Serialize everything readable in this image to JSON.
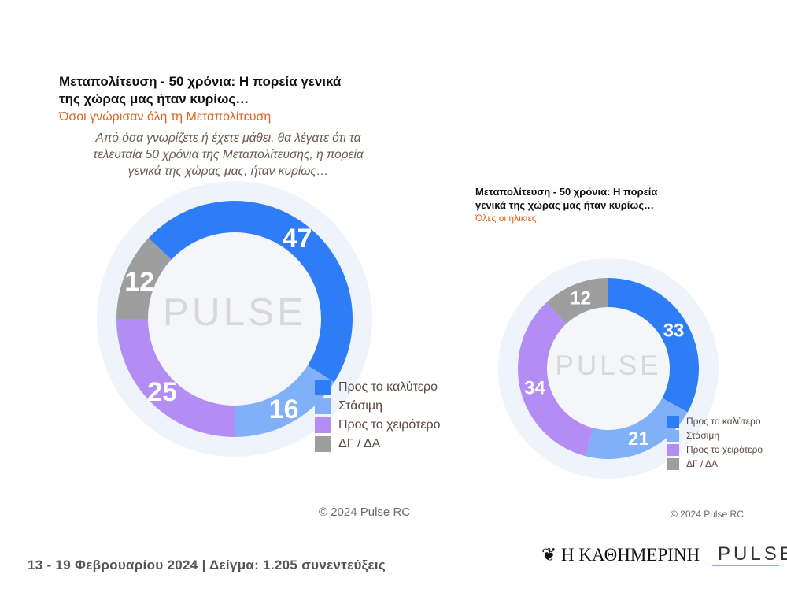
{
  "chart_data": [
    {
      "type": "pie",
      "title": "Μεταπολίτευση - 50 χρόνια: Η πορεία γενικά της χώρας μας ήταν κυρίως…",
      "subtitle": "Όσοι γνώρισαν όλη τη Μεταπολίτευση",
      "question": "Από όσα γνωρίζετε ή έχετε μάθει, θα λέγατε ότι τα τελευταία 50 χρόνια της Μεταπολίτευσης, η πορεία γενικά της χώρας μας, ήταν κυρίως…",
      "categories": [
        "Προς το καλύτερο",
        "Στάσιμη",
        "Προς το χειρότερο",
        "ΔΓ / ΔΑ"
      ],
      "values": [
        47,
        16,
        25,
        12
      ],
      "legend": "right",
      "copyright": "© 2024 Pulse RC"
    },
    {
      "type": "pie",
      "title": "Μεταπολίτευση - 50 χρόνια: Η πορεία γενικά της χώρας μας ήταν κυρίως…",
      "subtitle": "Όλες οι ηλικίες",
      "categories": [
        "Προς το καλύτερο",
        "Στάσιμη",
        "Προς το χειρότερο",
        "ΔΓ / ΔΑ"
      ],
      "values": [
        33,
        21,
        34,
        12
      ],
      "legend": "bottom-right",
      "copyright": "© 2024 Pulse RC"
    }
  ],
  "colors": [
    "#2F7DF6",
    "#7FB0F8",
    "#B38CF4",
    "#9E9E9E"
  ],
  "footer": {
    "text": "13 - 19 Φεβρουαρίου 2024 | Δείγμα: 1.205 συνεντεύξεις",
    "logo1": "Η ΚΑΘΗΜΕΡΙΝΗ",
    "logo2": "PULSE"
  }
}
